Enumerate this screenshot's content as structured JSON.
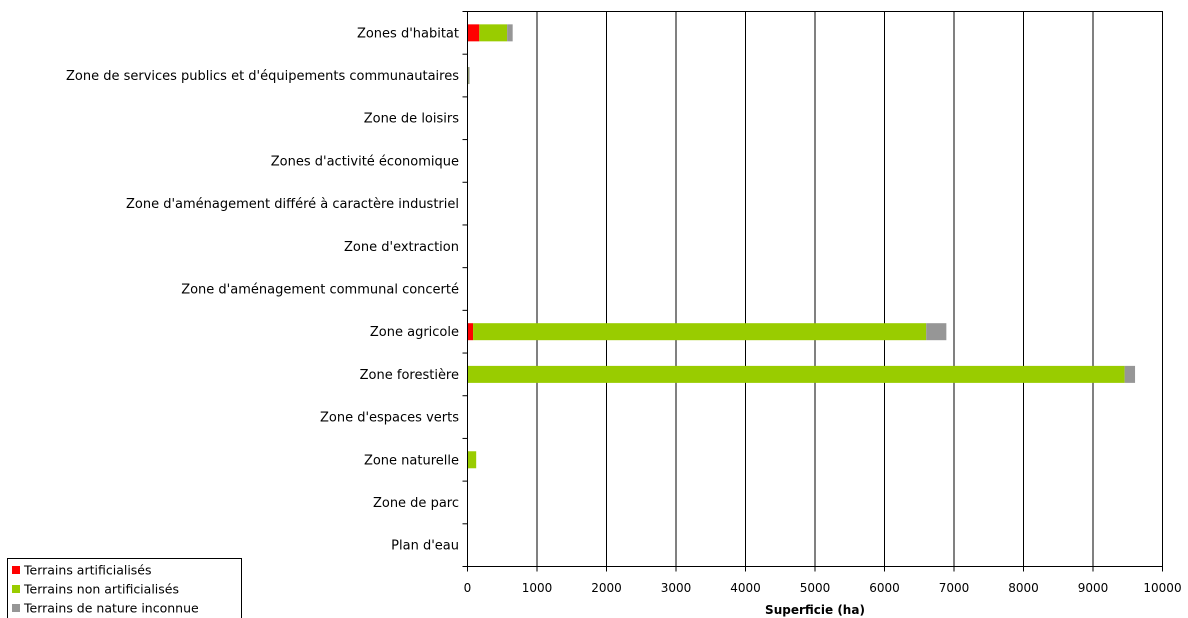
{
  "chart_data": {
    "type": "bar",
    "orientation": "horizontal",
    "stacked": true,
    "categories": [
      "Zones d'habitat",
      "Zone de services publics et d'équipements communautaires",
      "Zone de loisirs",
      "Zones d'activité économique",
      "Zone d'aménagement différé à caractère industriel",
      "Zone d'extraction",
      "Zone d'aménagement communal concerté",
      "Zone agricole",
      "Zone forestière",
      "Zone d'espaces verts",
      "Zone naturelle",
      "Zone de parc",
      "Plan d'eau"
    ],
    "series": [
      {
        "name": "Terrains artificialisés",
        "color": "#ff0000",
        "values": [
          170,
          5,
          0,
          0,
          0,
          0,
          0,
          80,
          5,
          0,
          5,
          0,
          0
        ]
      },
      {
        "name": "Terrains non artificialisés",
        "color": "#99cc00",
        "values": [
          400,
          5,
          0,
          0,
          0,
          0,
          0,
          6520,
          9450,
          0,
          120,
          0,
          0
        ]
      },
      {
        "name": "Terrains de nature inconnue",
        "color": "#969696",
        "values": [
          80,
          20,
          0,
          0,
          0,
          0,
          0,
          290,
          150,
          0,
          0,
          0,
          0
        ]
      }
    ],
    "xlabel": "Superficie (ha)",
    "xlim": [
      0,
      10000
    ],
    "xticks": [
      "0",
      "1000",
      "2000",
      "3000",
      "4000",
      "5000",
      "6000",
      "7000",
      "8000",
      "9000",
      "10000"
    ],
    "grid": "vertical",
    "legend": "bottom-left"
  }
}
